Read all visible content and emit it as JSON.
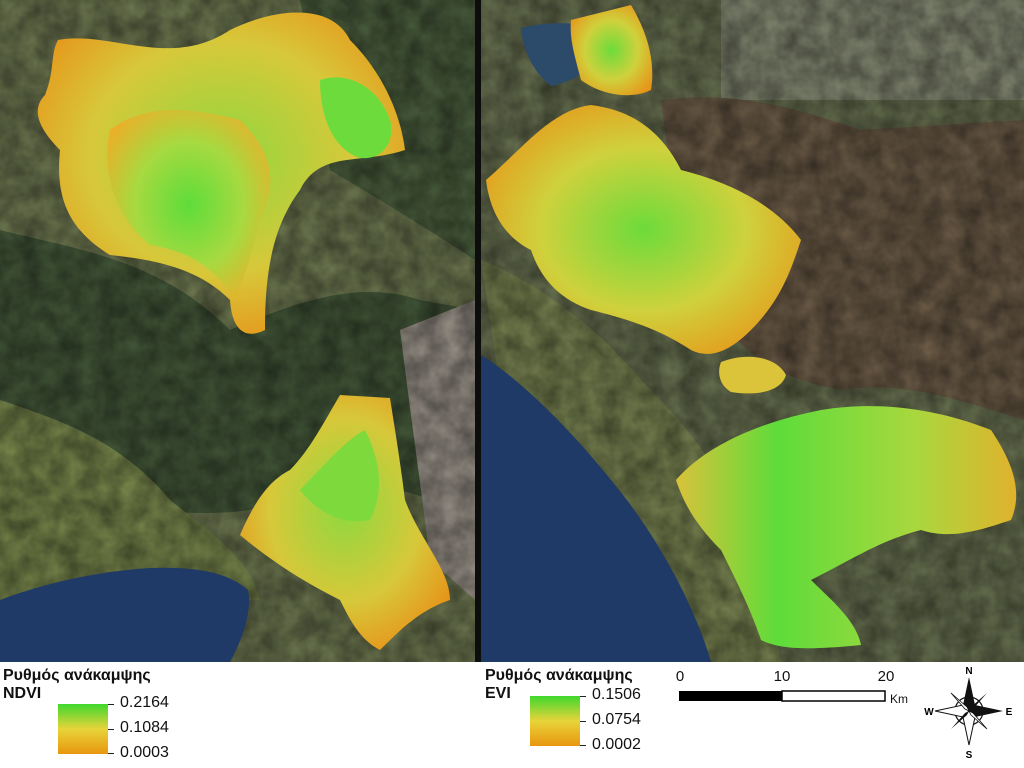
{
  "panels": {
    "left": {
      "index": "NDVI"
    },
    "right": {
      "index": "EVI"
    }
  },
  "legend_ndvi": {
    "title": "Ρυθμός ανάκαμψης",
    "subtitle": "NDVI",
    "max": "0.2164",
    "mid": "0.1084",
    "min": "0.0003",
    "color_high": "#3fd82e",
    "color_mid": "#e8d43a",
    "color_low": "#e8960e"
  },
  "legend_evi": {
    "title": "Ρυθμός ανάκαμψης",
    "subtitle": "EVI",
    "max": "0.1506",
    "mid": "0.0754",
    "min": "0.0002",
    "color_high": "#3fd82e",
    "color_mid": "#e8d43a",
    "color_low": "#e8960e"
  },
  "scale_bar": {
    "labels": [
      "0",
      "10",
      "20"
    ],
    "unit": "Km"
  },
  "north_arrow": {
    "n": "N",
    "s": "S",
    "e": "E",
    "w": "W"
  },
  "colors": {
    "sea": "#1f3a66",
    "land": "#6f7a50",
    "forest": "#3f5a36",
    "mountain": "#8a7f6a"
  }
}
